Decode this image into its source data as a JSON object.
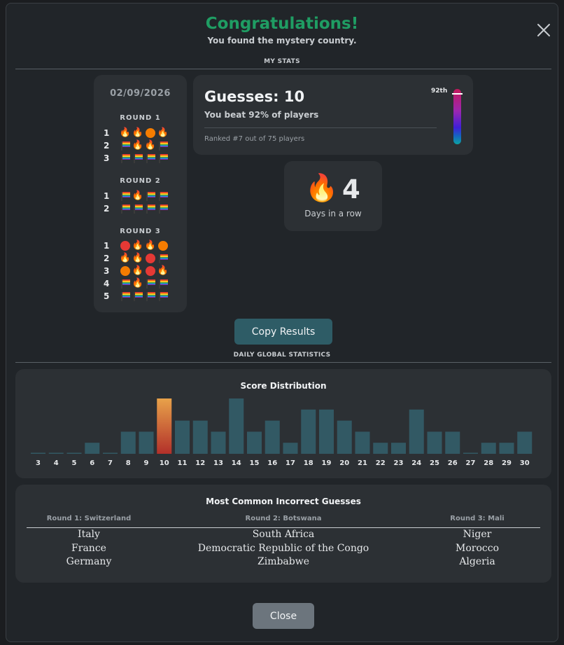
{
  "header": {
    "title": "Congratulations!",
    "subtitle": "You found the mystery country."
  },
  "sections": {
    "my_stats": "MY STATS",
    "global_stats": "DAILY GLOBAL STATISTICS"
  },
  "rounds_card": {
    "date": "02/09/2026",
    "rounds": [
      {
        "label": "ROUND 1",
        "rows": [
          {
            "num": "1",
            "cells": [
              "fire",
              "fire",
              "orange-dot",
              "fire"
            ]
          },
          {
            "num": "2",
            "cells": [
              "flag",
              "fire",
              "fire",
              "flag"
            ]
          },
          {
            "num": "3",
            "cells": [
              "flag",
              "flag",
              "flag",
              "flag"
            ]
          }
        ]
      },
      {
        "label": "ROUND 2",
        "rows": [
          {
            "num": "1",
            "cells": [
              "flag",
              "fire",
              "flag",
              "flag"
            ]
          },
          {
            "num": "2",
            "cells": [
              "flag",
              "flag",
              "flag",
              "flag"
            ]
          }
        ]
      },
      {
        "label": "ROUND 3",
        "rows": [
          {
            "num": "1",
            "cells": [
              "red-dot",
              "fire",
              "fire",
              "orange-dot"
            ]
          },
          {
            "num": "2",
            "cells": [
              "fire",
              "fire",
              "red-dot",
              "flag"
            ]
          },
          {
            "num": "3",
            "cells": [
              "orange-dot",
              "fire",
              "red-dot",
              "fire"
            ]
          },
          {
            "num": "4",
            "cells": [
              "flag",
              "fire",
              "flag",
              "flag"
            ]
          },
          {
            "num": "5",
            "cells": [
              "flag",
              "flag",
              "flag",
              "flag"
            ]
          }
        ]
      }
    ]
  },
  "guesses_card": {
    "title": "Guesses: 10",
    "beat": "You beat 92% of players",
    "rank": "Ranked #7 out of 75 players",
    "percentile_label": "92th",
    "percentile": 0.92
  },
  "streak": {
    "icon": "fire-icon",
    "count": "4",
    "label": "Days in a row"
  },
  "buttons": {
    "copy": "Copy Results",
    "close": "Close"
  },
  "chart_data": {
    "type": "bar",
    "title": "Score Distribution",
    "categories": [
      "3",
      "4",
      "5",
      "6",
      "7",
      "8",
      "9",
      "10",
      "11",
      "12",
      "13",
      "14",
      "15",
      "16",
      "17",
      "18",
      "19",
      "20",
      "21",
      "22",
      "23",
      "24",
      "25",
      "26",
      "27",
      "28",
      "29",
      "30"
    ],
    "values": [
      0,
      0,
      0,
      1,
      0,
      2,
      2,
      5,
      3,
      3,
      2,
      5,
      2,
      3,
      1,
      4,
      4,
      3,
      2,
      1,
      1,
      4,
      2,
      2,
      0,
      1,
      1,
      2
    ],
    "highlight_category": "10",
    "colors": {
      "bar": "#325964",
      "highlight_top": "#e8a24a",
      "highlight_bottom": "#b2302a"
    },
    "xlabel": "",
    "ylabel": ""
  },
  "incorrect": {
    "title": "Most Common Incorrect Guesses",
    "columns": [
      {
        "header": "Round 1: Switzerland",
        "items": [
          "Italy",
          "France",
          "Germany"
        ]
      },
      {
        "header": "Round 2: Botswana",
        "items": [
          "South Africa",
          "Democratic Republic of the Congo",
          "Zimbabwe"
        ]
      },
      {
        "header": "Round 3: Mali",
        "items": [
          "Niger",
          "Morocco",
          "Algeria"
        ]
      }
    ]
  },
  "colors": {
    "title_green": "#1f9d63",
    "modal_bg": "#212529",
    "card_bg": "#2c3034"
  }
}
